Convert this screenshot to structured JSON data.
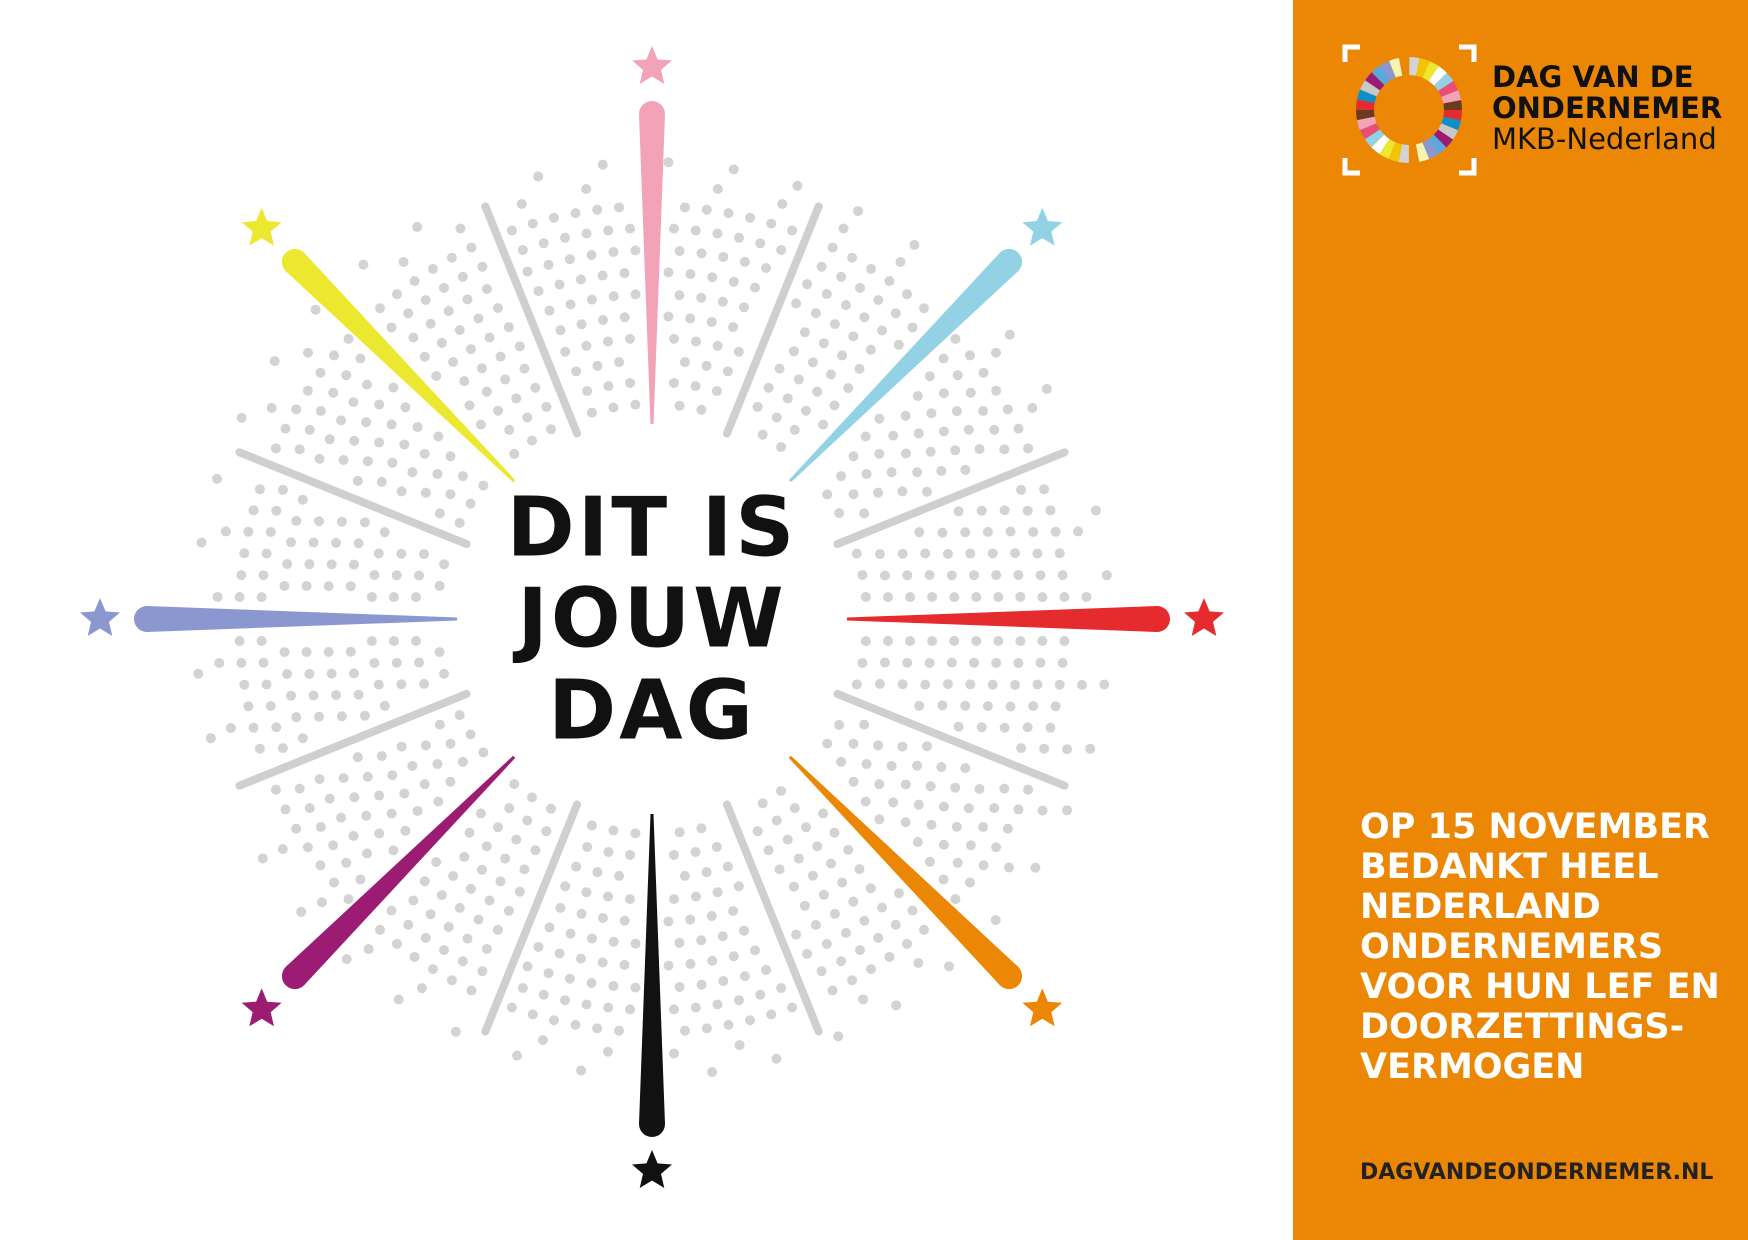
{
  "headline": [
    "DIT IS",
    "JOUW",
    "DAG"
  ],
  "logo": {
    "line1": "DAG VAN DE",
    "line2": "ONDERNEMER",
    "line3": "MKB-Nederland"
  },
  "message": [
    "OP 15 NOVEMBER",
    "BEDANKT HEEL",
    "NEDERLAND",
    "ONDERNEMERS",
    "VOOR HUN LEF EN",
    "DOORZETTINGS-",
    "VERMOGEN"
  ],
  "website": "DAGVANDEONDERNEMER.NL"
}
